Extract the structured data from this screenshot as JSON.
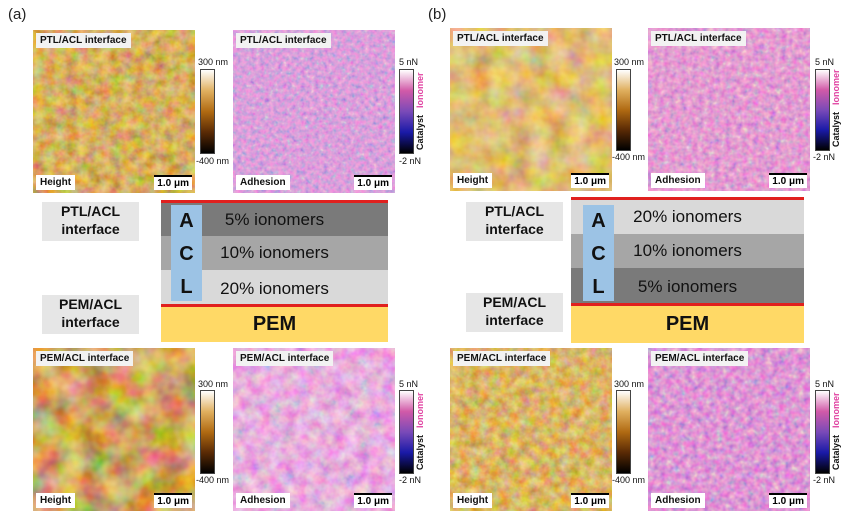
{
  "panels": [
    {
      "letter": "(a)",
      "top_height": {
        "tag": "PTL/ACL interface",
        "mode": "Height",
        "scale": "1.0 μm",
        "cmax": "300 nm",
        "cmin": "-400 nm"
      },
      "top_adhesion": {
        "tag": "PTL/ACL interface",
        "mode": "Adhesion",
        "scale": "1.0 μm",
        "cmax": "5 nN",
        "cmin": "-2 nN",
        "cat": "Catalyst",
        "ion": "Ionomer"
      },
      "bot_height": {
        "tag": "PEM/ACL interface",
        "mode": "Height",
        "scale": "1.0 μm",
        "cmax": "300 nm",
        "cmin": "-400 nm"
      },
      "bot_adhesion": {
        "tag": "PEM/ACL interface",
        "mode": "Adhesion",
        "scale": "1.0 μm",
        "cmax": "5 nN",
        "cmin": "-2 nN",
        "cat": "Catalyst",
        "ion": "Ionomer"
      },
      "ptl_label": [
        "PTL/ACL",
        "interface"
      ],
      "pem_label": [
        "PEM/ACL",
        "interface"
      ],
      "acl_letters": [
        "A",
        "C",
        "L"
      ],
      "layers": [
        "5% ionomers",
        "10% ionomers",
        "20% ionomers"
      ],
      "pem": "PEM"
    },
    {
      "letter": "(b)",
      "top_height": {
        "tag": "PTL/ACL interface",
        "mode": "Height",
        "scale": "1.0 μm",
        "cmax": "300 nm",
        "cmin": "-400 nm"
      },
      "top_adhesion": {
        "tag": "PTL/ACL interface",
        "mode": "Adhesion",
        "scale": "1.0 μm",
        "cmax": "5 nN",
        "cmin": "-2 nN",
        "cat": "Catalyst",
        "ion": "Ionomer"
      },
      "bot_height": {
        "tag": "PEM/ACL interface",
        "mode": "Height",
        "scale": "1.0 μm",
        "cmax": "300 nm",
        "cmin": "-400 nm"
      },
      "bot_adhesion": {
        "tag": "PEM/ACL interface",
        "mode": "Adhesion",
        "scale": "1.0 μm",
        "cmax": "5 nN",
        "cmin": "-2 nN",
        "cat": "Catalyst",
        "ion": "Ionomer"
      },
      "ptl_label": [
        "PTL/ACL",
        "interface"
      ],
      "pem_label": [
        "PEM/ACL",
        "interface"
      ],
      "acl_letters": [
        "A",
        "C",
        "L"
      ],
      "layers": [
        "20% ionomers",
        "10% ionomers",
        "5% ionomers"
      ],
      "pem": "PEM"
    }
  ],
  "colors": {
    "height_gradient": [
      "#000000",
      "#5a2a05",
      "#b06a12",
      "#e0b060",
      "#ffffff"
    ],
    "adhesion_gradient": [
      "#000000",
      "#1a1aa8",
      "#7a4ab8",
      "#d15aa8",
      "#ffffff"
    ],
    "layer_dark": "#7a7a7a",
    "layer_mid": "#a6a6a6",
    "layer_light": "#d9d9d9",
    "acl": "#9cc3e5",
    "pem": "#ffd966",
    "interface_line": "#e0201e",
    "ionomer_text": "#e03fa0"
  }
}
